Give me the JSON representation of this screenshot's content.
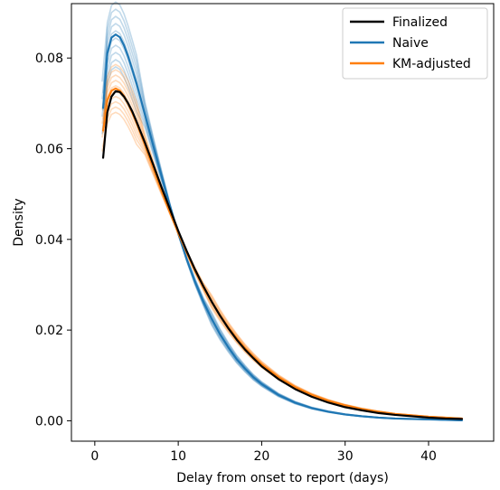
{
  "chart_data": {
    "type": "line",
    "title": "",
    "xlabel": "Delay from onset to report (days)",
    "ylabel": "Density",
    "xlim": [
      -2.8,
      47.8
    ],
    "ylim": [
      -0.0045,
      0.092
    ],
    "xticks": [
      0,
      10,
      20,
      30,
      40
    ],
    "yticks": [
      0.0,
      0.02,
      0.04,
      0.06,
      0.08
    ],
    "xtick_labels": [
      "0",
      "10",
      "20",
      "30",
      "40"
    ],
    "ytick_labels": [
      "0.00",
      "0.02",
      "0.04",
      "0.06",
      "0.08"
    ],
    "grid": false,
    "legend_position": "top-right",
    "x": [
      1,
      1.5,
      2,
      2.5,
      3,
      3.5,
      4,
      4.5,
      5,
      6,
      7,
      8,
      9,
      10,
      11,
      12,
      13,
      14,
      15,
      16,
      17,
      18,
      19,
      20,
      22,
      24,
      26,
      28,
      30,
      32,
      34,
      36,
      38,
      40,
      42,
      44
    ],
    "series": [
      {
        "name": "Finalized",
        "color": "#000000",
        "width": 2.2,
        "values": [
          0.058,
          0.068,
          0.0715,
          0.0727,
          0.0725,
          0.0715,
          0.07,
          0.0682,
          0.066,
          0.0614,
          0.0565,
          0.0515,
          0.0467,
          0.0419,
          0.0375,
          0.0334,
          0.0297,
          0.0263,
          0.0232,
          0.0204,
          0.0179,
          0.0157,
          0.0138,
          0.012,
          0.0092,
          0.007,
          0.0053,
          0.004,
          0.003,
          0.0023,
          0.0017,
          0.0013,
          0.001,
          0.0007,
          0.0005,
          0.0004
        ]
      },
      {
        "name": "Naive",
        "color": "#1f77b4",
        "width": 2.2,
        "values": [
          0.069,
          0.081,
          0.0845,
          0.0852,
          0.0846,
          0.0828,
          0.0803,
          0.0774,
          0.0744,
          0.0676,
          0.0607,
          0.054,
          0.0474,
          0.0413,
          0.0357,
          0.0307,
          0.0263,
          0.0225,
          0.0191,
          0.0162,
          0.0136,
          0.0115,
          0.0096,
          0.0081,
          0.0057,
          0.004,
          0.0028,
          0.002,
          0.0014,
          0.001,
          0.0007,
          0.0005,
          0.0004,
          0.0003,
          0.0002,
          0.0001
        ]
      },
      {
        "name": "KM-adjusted",
        "color": "#ff7f0e",
        "width": 2.2,
        "values": [
          0.064,
          0.0707,
          0.0728,
          0.0733,
          0.0728,
          0.0716,
          0.0699,
          0.0679,
          0.0657,
          0.0609,
          0.0558,
          0.0508,
          0.046,
          0.0414,
          0.0372,
          0.0332,
          0.0296,
          0.0263,
          0.0233,
          0.0206,
          0.0182,
          0.016,
          0.0141,
          0.0124,
          0.0096,
          0.0074,
          0.0057,
          0.0044,
          0.0034,
          0.0026,
          0.002,
          0.0015,
          0.0012,
          0.0009,
          0.0007,
          0.0005
        ]
      }
    ]
  }
}
